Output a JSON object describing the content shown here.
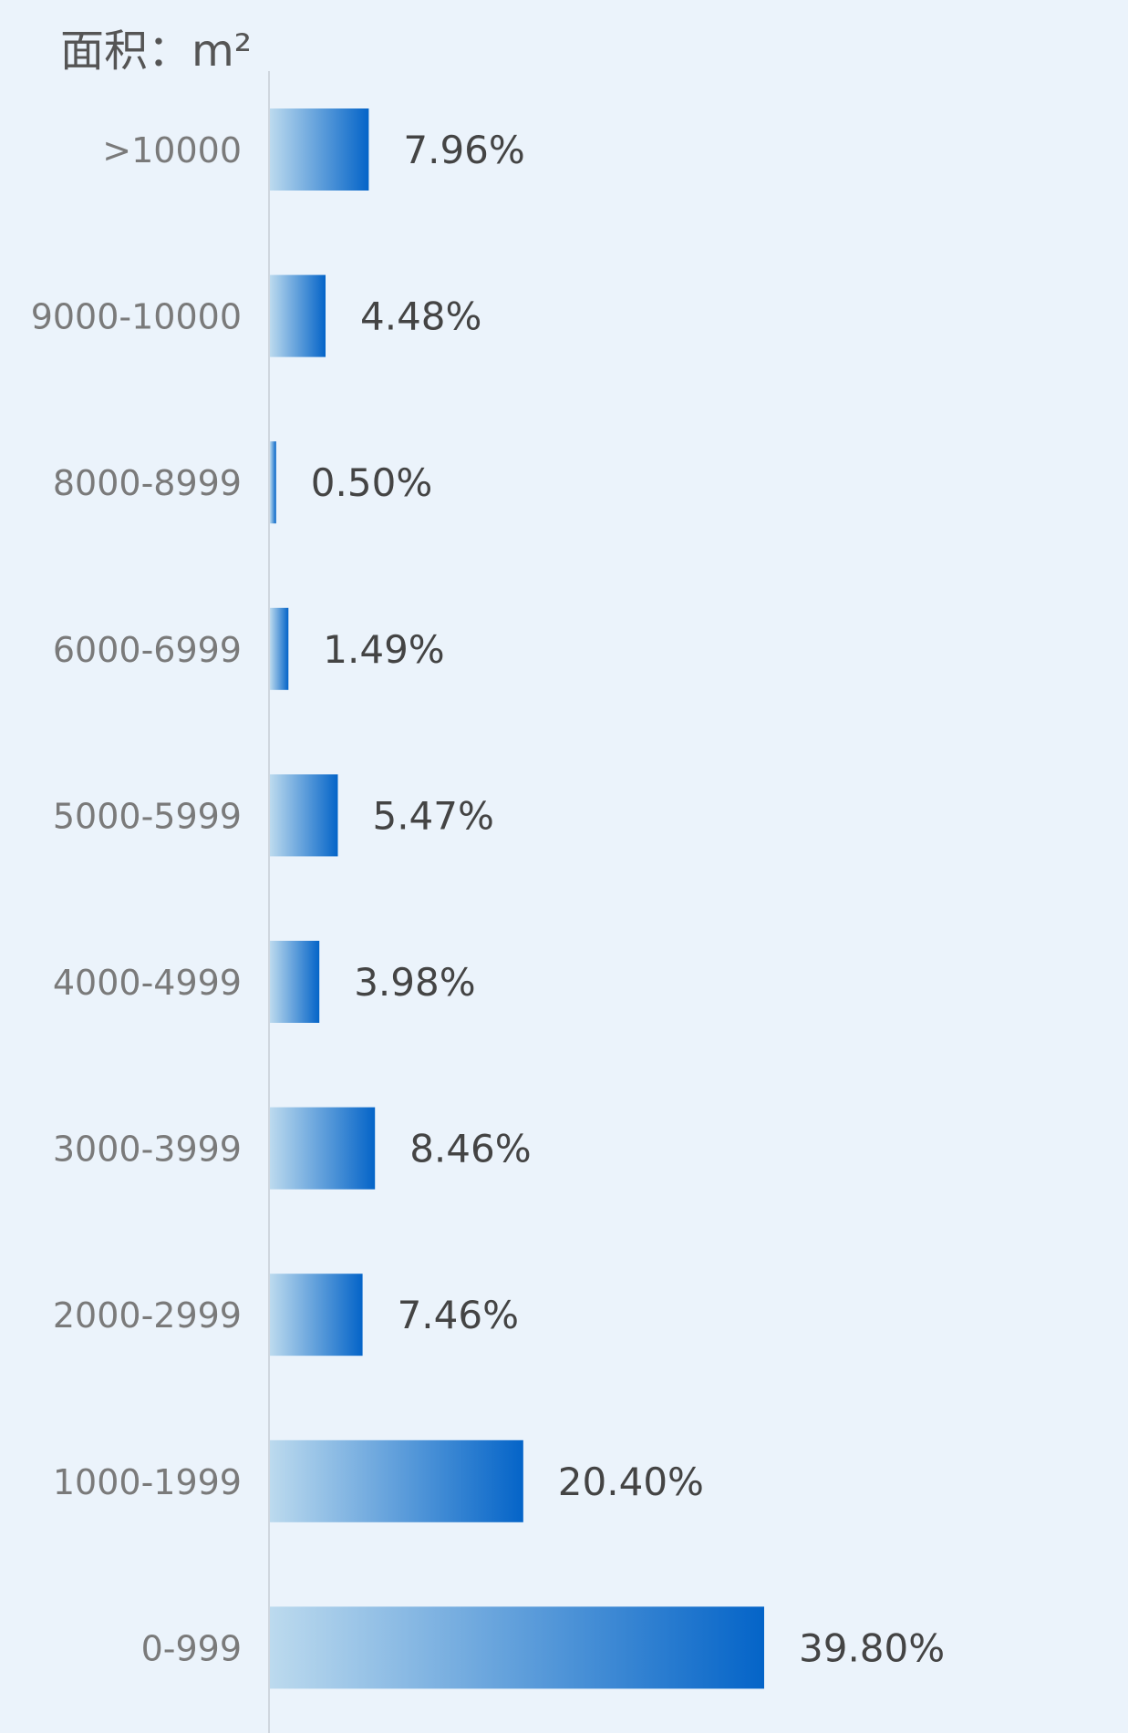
{
  "chart_data": {
    "type": "bar",
    "orientation": "horizontal",
    "ylabel": "面积：m²",
    "categories": [
      ">10000",
      "9000-10000",
      "8000-8999",
      "6000-6999",
      "5000-5999",
      "4000-4999",
      "3000-3999",
      "2000-2999",
      "1000-1999",
      "0-999"
    ],
    "values": [
      7.96,
      4.48,
      0.5,
      1.49,
      5.47,
      3.98,
      8.46,
      7.46,
      20.4,
      39.8
    ],
    "value_labels": [
      "7.96%",
      "4.48%",
      "0.50%",
      "1.49%",
      "5.47%",
      "3.98%",
      "8.46%",
      "7.46%",
      "20.40%",
      "39.80%"
    ],
    "unit": "%",
    "xlim": [
      0,
      39.8
    ],
    "grid": false,
    "legend": "none",
    "colors": {
      "bar_start": "#bcdaee",
      "bar_end": "#0464c8",
      "label": "#7a7a7a",
      "value": "#444444",
      "axis": "#cfd6de",
      "background": "#ebf3fb"
    }
  }
}
